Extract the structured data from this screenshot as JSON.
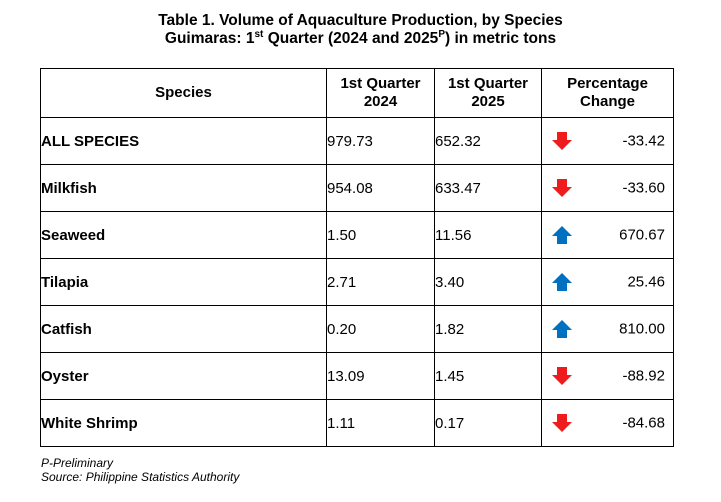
{
  "title": {
    "line1": "Table 1. Volume of Aquaculture Production, by Species",
    "line2_pre": "Guimaras: 1",
    "line2_sup1": "st",
    "line2_mid": " Quarter (2024 and 2025",
    "line2_sup2": "P",
    "line2_post": ") in metric tons"
  },
  "table": {
    "headers": {
      "species": "Species",
      "q2024_l1": "1st Quarter",
      "q2024_l2": "2024",
      "q2025_l1": "1st Quarter",
      "q2025_l2": "2025",
      "change_l1": "Percentage",
      "change_l2": "Change"
    },
    "rows": [
      {
        "species": "ALL SPECIES",
        "q2024": "979.73",
        "q2025": "652.32",
        "change": "-33.42",
        "direction": "down"
      },
      {
        "species": "Milkfish",
        "q2024": "954.08",
        "q2025": "633.47",
        "change": "-33.60",
        "direction": "down"
      },
      {
        "species": "Seaweed",
        "q2024": "1.50",
        "q2025": "11.56",
        "change": "670.67",
        "direction": "up"
      },
      {
        "species": "Tilapia",
        "q2024": "2.71",
        "q2025": "3.40",
        "change": "25.46",
        "direction": "up"
      },
      {
        "species": "Catfish",
        "q2024": "0.20",
        "q2025": "1.82",
        "change": "810.00",
        "direction": "up"
      },
      {
        "species": "Oyster",
        "q2024": "13.09",
        "q2025": "1.45",
        "change": "-88.92",
        "direction": "down"
      },
      {
        "species": "White Shrimp",
        "q2024": "1.11",
        "q2025": "0.17",
        "change": "-84.68",
        "direction": "down"
      }
    ]
  },
  "icons": {
    "down": {
      "name": "arrow-down-icon",
      "color": "#ee1c1c"
    },
    "up": {
      "name": "arrow-up-icon",
      "color": "#0070c0"
    }
  },
  "notes": {
    "preliminary": "P-Preliminary",
    "source": "Source: Philippine Statistics Authority"
  }
}
